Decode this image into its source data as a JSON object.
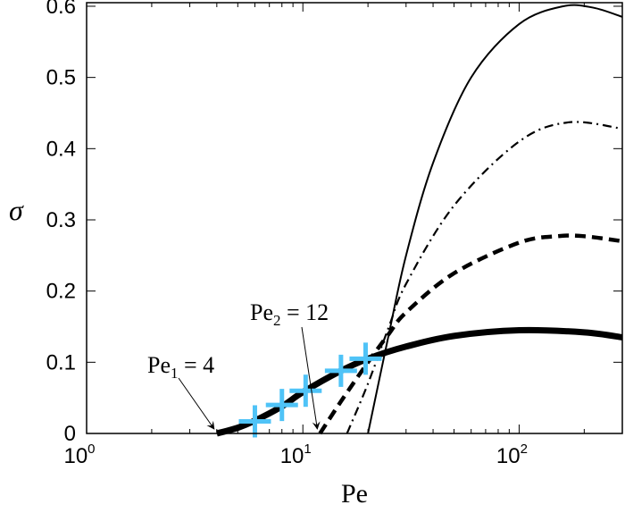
{
  "chart_data": {
    "type": "line",
    "xlabel": "Pe",
    "ylabel": "σ",
    "xscale": "log",
    "xlim": [
      1,
      300
    ],
    "ylim": [
      0,
      0.605
    ],
    "xticks": [
      {
        "base": "10",
        "exp": "0",
        "value": 1
      },
      {
        "base": "10",
        "exp": "1",
        "value": 10
      },
      {
        "base": "10",
        "exp": "2",
        "value": 100
      }
    ],
    "yticks": [
      "0",
      "0.1",
      "0.2",
      "0.3",
      "0.4",
      "0.5",
      "0.6"
    ],
    "grid": false,
    "series": [
      {
        "style": "thick-solid",
        "color": "#000000",
        "points": [
          [
            4,
            0
          ],
          [
            5,
            0.008
          ],
          [
            6,
            0.018
          ],
          [
            8,
            0.038
          ],
          [
            10,
            0.058
          ],
          [
            15,
            0.088
          ],
          [
            20,
            0.105
          ],
          [
            30,
            0.122
          ],
          [
            50,
            0.137
          ],
          [
            100,
            0.145
          ],
          [
            200,
            0.142
          ],
          [
            300,
            0.135
          ]
        ]
      },
      {
        "style": "dashed",
        "color": "#000000",
        "points": [
          [
            12,
            0
          ],
          [
            15,
            0.045
          ],
          [
            20,
            0.1
          ],
          [
            25,
            0.14
          ],
          [
            30,
            0.17
          ],
          [
            50,
            0.225
          ],
          [
            100,
            0.268
          ],
          [
            150,
            0.277
          ],
          [
            200,
            0.277
          ],
          [
            300,
            0.27
          ]
        ]
      },
      {
        "style": "dash-dot",
        "color": "#000000",
        "points": [
          [
            16,
            0
          ],
          [
            20,
            0.07
          ],
          [
            25,
            0.15
          ],
          [
            30,
            0.21
          ],
          [
            50,
            0.32
          ],
          [
            100,
            0.41
          ],
          [
            170,
            0.437
          ],
          [
            300,
            0.428
          ]
        ]
      },
      {
        "style": "thin-solid",
        "color": "#000000",
        "points": [
          [
            20,
            0
          ],
          [
            25,
            0.14
          ],
          [
            30,
            0.25
          ],
          [
            40,
            0.38
          ],
          [
            60,
            0.5
          ],
          [
            100,
            0.575
          ],
          [
            160,
            0.6
          ],
          [
            220,
            0.598
          ],
          [
            300,
            0.585
          ]
        ]
      }
    ],
    "markers": {
      "shape": "plus",
      "color": "#4fc3f7",
      "points": [
        [
          6,
          0.017
        ],
        [
          8,
          0.04
        ],
        [
          10.3,
          0.06
        ],
        [
          15,
          0.088
        ],
        [
          19.5,
          0.105
        ]
      ]
    },
    "annotations": [
      {
        "base": "Pe",
        "sub": "1",
        "rest": " = 4",
        "target": [
          4,
          0
        ]
      },
      {
        "base": "Pe",
        "sub": "2",
        "rest": " = 12",
        "target": [
          12,
          0
        ]
      }
    ]
  }
}
